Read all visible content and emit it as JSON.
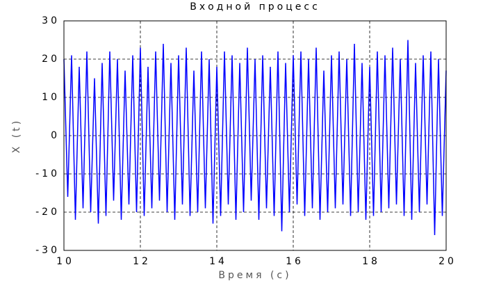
{
  "chart_data": {
    "type": "line",
    "title": "Входной процесс",
    "x_label": "Время (с)",
    "y_label": "X (t)",
    "x": [
      10.0,
      10.1,
      10.2,
      10.3,
      10.4,
      10.5,
      10.6,
      10.7,
      10.8,
      10.9,
      11.0,
      11.1,
      11.2,
      11.3,
      11.4,
      11.5,
      11.6,
      11.7,
      11.8,
      11.9,
      12.0,
      12.1,
      12.2,
      12.3,
      12.4,
      12.5,
      12.6,
      12.7,
      12.8,
      12.9,
      13.0,
      13.1,
      13.2,
      13.3,
      13.4,
      13.5,
      13.6,
      13.7,
      13.8,
      13.9,
      14.0,
      14.1,
      14.2,
      14.3,
      14.4,
      14.5,
      14.6,
      14.7,
      14.8,
      14.9,
      15.0,
      15.1,
      15.2,
      15.3,
      15.4,
      15.5,
      15.6,
      15.7,
      15.8,
      15.9,
      16.0,
      16.1,
      16.2,
      16.3,
      16.4,
      16.5,
      16.6,
      16.7,
      16.8,
      16.9,
      17.0,
      17.1,
      17.2,
      17.3,
      17.4,
      17.5,
      17.6,
      17.7,
      17.8,
      17.9,
      18.0,
      18.1,
      18.2,
      18.3,
      18.4,
      18.5,
      18.6,
      18.7,
      18.8,
      18.9,
      19.0,
      19.1,
      19.2,
      19.3,
      19.4,
      19.5,
      19.6,
      19.7,
      19.8,
      19.9,
      20.0
    ],
    "series": [
      {
        "name": "X (t)",
        "color": "#0000ff",
        "values": [
          20,
          -16,
          21,
          -22,
          18,
          -19,
          22,
          -20,
          15,
          -23,
          19,
          -21,
          22,
          -17,
          20,
          -22,
          17,
          -18,
          21,
          -20,
          23,
          -21,
          18,
          -19,
          22,
          -17,
          24,
          -20,
          19,
          -22,
          21,
          -18,
          23,
          -21,
          17,
          -20,
          22,
          -19,
          20,
          -23,
          18,
          -21,
          22,
          -18,
          21,
          -22,
          19,
          -20,
          23,
          -17,
          20,
          -22,
          21,
          -19,
          18,
          -21,
          22,
          -25,
          19,
          -20,
          21,
          -18,
          22,
          -21,
          20,
          -19,
          23,
          -22,
          17,
          -20,
          21,
          -19,
          22,
          -18,
          20,
          -21,
          24,
          -20,
          19,
          -22,
          18,
          -21,
          22,
          -20,
          21,
          -19,
          23,
          -18,
          20,
          -21,
          25,
          -22,
          19,
          -20,
          21,
          -18,
          22,
          -26,
          20,
          -21,
          17
        ]
      }
    ],
    "xlim": [
      10,
      20
    ],
    "ylim": [
      -30,
      30
    ],
    "xticks": [
      10,
      12,
      14,
      16,
      18,
      20
    ],
    "yticks": [
      -30,
      -20,
      -10,
      0,
      10,
      20,
      30
    ],
    "grid": true
  }
}
